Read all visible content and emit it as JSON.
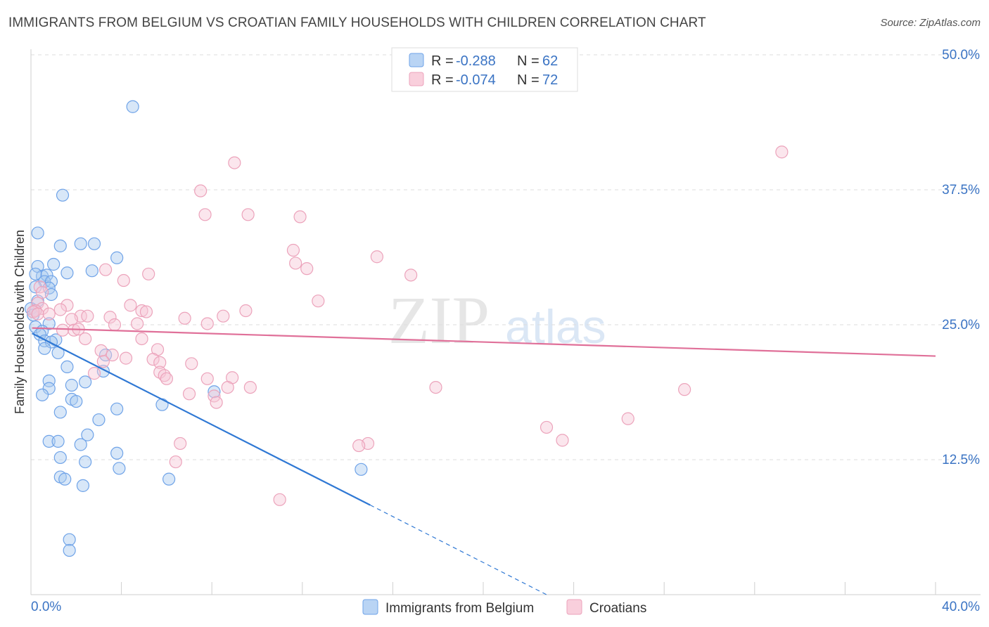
{
  "chart_data": {
    "type": "scatter",
    "title": "IMMIGRANTS FROM BELGIUM VS CROATIAN FAMILY HOUSEHOLDS WITH CHILDREN CORRELATION CHART",
    "source": "Source: ZipAtlas.com",
    "xlabel": "",
    "ylabel": "Family Households with Children",
    "xlim": [
      0,
      40
    ],
    "ylim": [
      0,
      50
    ],
    "x_tick_labels": [
      "0.0%",
      "40.0%"
    ],
    "y_ticks": [
      12.5,
      25.0,
      37.5,
      50.0
    ],
    "y_tick_labels": [
      "12.5%",
      "25.0%",
      "37.5%",
      "50.0%"
    ],
    "watermark": {
      "zip": "ZIP",
      "atlas": "atlas"
    },
    "legend": {
      "r_label": "R =",
      "n_label": "N =",
      "items": [
        {
          "r": "-0.288",
          "n": "62"
        },
        {
          "r": "-0.074",
          "n": "72"
        }
      ]
    },
    "series": [
      {
        "name": "Immigrants from Belgium",
        "color": "#6fa3e8",
        "fill": "#a9c9f0",
        "line_color": "#2f78d4",
        "trend": {
          "x0": 0.05,
          "y0": 24.2,
          "x1": 15.0,
          "y1": 8.3,
          "dash_to_x": 22.8,
          "dash_to_y": 0.0
        },
        "points": [
          [
            4.5,
            45.2
          ],
          [
            1.4,
            37.0
          ],
          [
            0.3,
            33.5
          ],
          [
            1.3,
            32.3
          ],
          [
            2.2,
            32.5
          ],
          [
            2.8,
            32.5
          ],
          [
            3.8,
            31.2
          ],
          [
            0.3,
            30.4
          ],
          [
            1.0,
            30.6
          ],
          [
            0.5,
            29.5
          ],
          [
            0.7,
            29.6
          ],
          [
            0.2,
            29.7
          ],
          [
            1.6,
            29.8
          ],
          [
            2.7,
            30.0
          ],
          [
            0.6,
            29.0
          ],
          [
            0.9,
            29.0
          ],
          [
            0.8,
            28.4
          ],
          [
            0.2,
            28.5
          ],
          [
            0.9,
            27.8
          ],
          [
            0.3,
            27.2
          ],
          [
            0.0,
            26.5
          ],
          [
            0.2,
            26.3
          ],
          [
            0.1,
            25.9
          ],
          [
            0.8,
            25.1
          ],
          [
            0.2,
            24.8
          ],
          [
            0.5,
            24.4
          ],
          [
            0.4,
            24.1
          ],
          [
            0.6,
            23.5
          ],
          [
            1.1,
            23.6
          ],
          [
            0.9,
            23.4
          ],
          [
            0.6,
            22.8
          ],
          [
            1.2,
            22.4
          ],
          [
            3.3,
            22.2
          ],
          [
            3.2,
            20.7
          ],
          [
            1.6,
            21.1
          ],
          [
            0.8,
            19.8
          ],
          [
            0.8,
            19.1
          ],
          [
            1.8,
            19.4
          ],
          [
            2.4,
            19.7
          ],
          [
            8.1,
            18.8
          ],
          [
            0.5,
            18.5
          ],
          [
            1.8,
            18.1
          ],
          [
            2.0,
            17.9
          ],
          [
            5.8,
            17.6
          ],
          [
            3.8,
            17.2
          ],
          [
            1.3,
            16.9
          ],
          [
            3.0,
            16.2
          ],
          [
            2.5,
            14.8
          ],
          [
            0.8,
            14.2
          ],
          [
            1.2,
            14.2
          ],
          [
            2.2,
            13.9
          ],
          [
            3.8,
            13.1
          ],
          [
            1.3,
            12.7
          ],
          [
            2.4,
            12.3
          ],
          [
            3.9,
            11.7
          ],
          [
            14.6,
            11.6
          ],
          [
            1.3,
            10.9
          ],
          [
            1.5,
            10.7
          ],
          [
            6.1,
            10.7
          ],
          [
            2.3,
            10.1
          ],
          [
            1.7,
            5.1
          ],
          [
            1.7,
            4.1
          ]
        ]
      },
      {
        "name": "Croatians",
        "color": "#eca3bb",
        "fill": "#f7c8d7",
        "line_color": "#e07099",
        "trend": {
          "x0": 0.05,
          "y0": 24.7,
          "x1": 40.0,
          "y1": 22.1
        },
        "points": [
          [
            33.2,
            41.0
          ],
          [
            9.0,
            40.0
          ],
          [
            7.5,
            37.4
          ],
          [
            7.7,
            35.2
          ],
          [
            9.6,
            35.2
          ],
          [
            11.9,
            35.0
          ],
          [
            11.6,
            31.9
          ],
          [
            15.3,
            31.3
          ],
          [
            11.7,
            30.7
          ],
          [
            12.2,
            30.2
          ],
          [
            3.3,
            30.1
          ],
          [
            5.2,
            29.7
          ],
          [
            16.8,
            29.6
          ],
          [
            4.1,
            29.1
          ],
          [
            0.4,
            28.5
          ],
          [
            12.7,
            27.2
          ],
          [
            0.3,
            27.0
          ],
          [
            1.6,
            26.8
          ],
          [
            4.4,
            26.8
          ],
          [
            0.5,
            26.5
          ],
          [
            1.3,
            26.4
          ],
          [
            0.2,
            26.3
          ],
          [
            0.1,
            26.2
          ],
          [
            0.3,
            26.0
          ],
          [
            0.8,
            26.0
          ],
          [
            9.5,
            26.3
          ],
          [
            4.9,
            26.3
          ],
          [
            5.1,
            26.2
          ],
          [
            2.2,
            25.8
          ],
          [
            2.5,
            25.8
          ],
          [
            3.5,
            25.7
          ],
          [
            8.5,
            25.8
          ],
          [
            1.8,
            25.5
          ],
          [
            6.8,
            25.6
          ],
          [
            7.8,
            25.1
          ],
          [
            3.7,
            25.0
          ],
          [
            4.7,
            25.1
          ],
          [
            1.4,
            24.5
          ],
          [
            1.9,
            24.5
          ],
          [
            2.1,
            24.6
          ],
          [
            2.4,
            23.7
          ],
          [
            4.9,
            23.7
          ],
          [
            3.1,
            22.6
          ],
          [
            5.6,
            22.7
          ],
          [
            3.6,
            22.2
          ],
          [
            4.2,
            21.9
          ],
          [
            3.2,
            21.6
          ],
          [
            5.4,
            21.8
          ],
          [
            5.7,
            21.5
          ],
          [
            7.1,
            21.4
          ],
          [
            5.7,
            20.6
          ],
          [
            5.9,
            20.3
          ],
          [
            2.8,
            20.5
          ],
          [
            6.0,
            20.0
          ],
          [
            7.8,
            20.0
          ],
          [
            8.9,
            20.1
          ],
          [
            8.7,
            19.2
          ],
          [
            9.7,
            19.2
          ],
          [
            17.9,
            19.2
          ],
          [
            28.9,
            19.0
          ],
          [
            7.0,
            18.6
          ],
          [
            8.1,
            18.4
          ],
          [
            8.2,
            17.8
          ],
          [
            26.4,
            16.3
          ],
          [
            22.8,
            15.5
          ],
          [
            23.5,
            14.3
          ],
          [
            14.9,
            14.0
          ],
          [
            14.5,
            13.8
          ],
          [
            6.6,
            14.0
          ],
          [
            6.4,
            12.3
          ],
          [
            11.0,
            8.8
          ],
          [
            0.5,
            28.0
          ]
        ]
      }
    ]
  }
}
